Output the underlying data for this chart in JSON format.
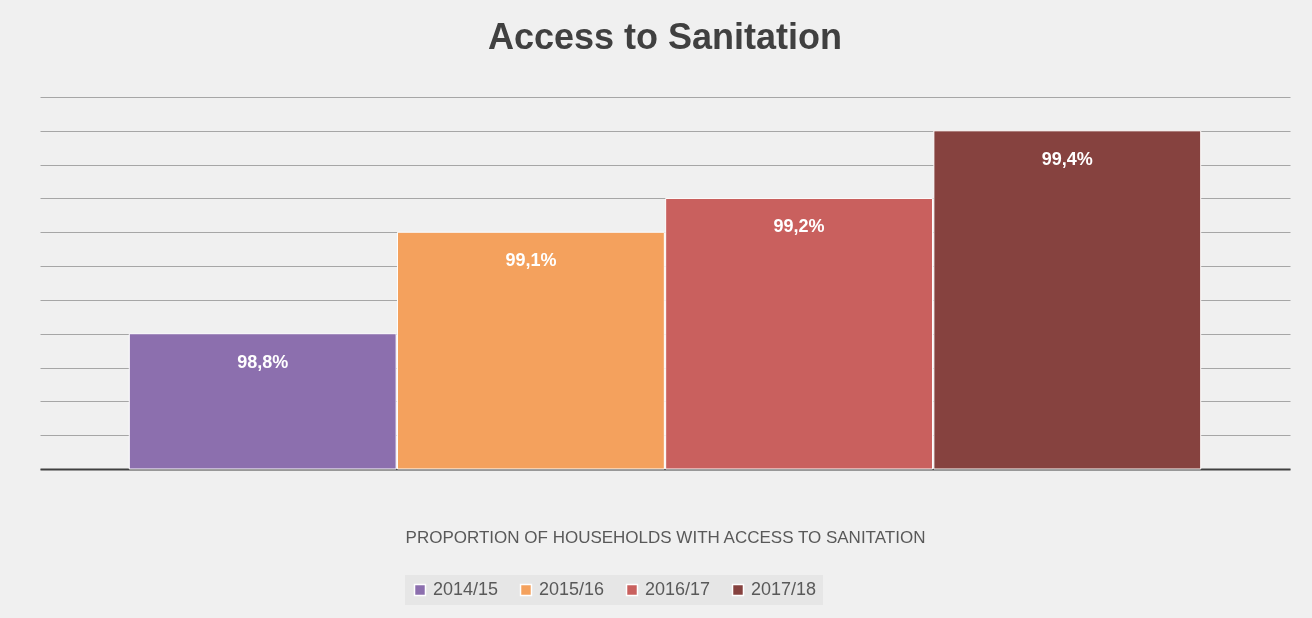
{
  "chart_data": {
    "type": "bar",
    "title": "Access to Sanitation",
    "xlabel": "PROPORTION OF HOUSEHOLDS WITH ACCESS TO SANITATION",
    "categories": [
      null
    ],
    "series": [
      {
        "name": "2014/15",
        "color": "#8c6fae",
        "values": [
          98.8
        ],
        "value_labels": [
          "98,8%"
        ]
      },
      {
        "name": "2015/16",
        "color": "#f4a15d",
        "values": [
          99.1
        ],
        "value_labels": [
          "99,1%"
        ]
      },
      {
        "name": "2016/17",
        "color": "#c9605e",
        "values": [
          99.2
        ],
        "value_labels": [
          "99,2%"
        ]
      },
      {
        "name": "2017/18",
        "color": "#86423f",
        "values": [
          99.4
        ],
        "value_labels": [
          "99,4%"
        ]
      }
    ],
    "ylim": [
      98.4,
      99.5
    ],
    "yticks": [
      {
        "value": 98.4,
        "label": null
      },
      {
        "value": 98.5,
        "label": null
      },
      {
        "value": 98.6,
        "label": null
      },
      {
        "value": 98.7,
        "label": null
      },
      {
        "value": 98.8,
        "label": null
      },
      {
        "value": 98.9,
        "label": null
      },
      {
        "value": 99.0,
        "label": null
      },
      {
        "value": 99.1,
        "label": null
      },
      {
        "value": 99.2,
        "label": null
      },
      {
        "value": 99.3,
        "label": null
      },
      {
        "value": 99.4,
        "label": null
      },
      {
        "value": 99.5,
        "label": null
      }
    ],
    "grid": true,
    "legend": "bottom",
    "tick_labels": "x"
  }
}
